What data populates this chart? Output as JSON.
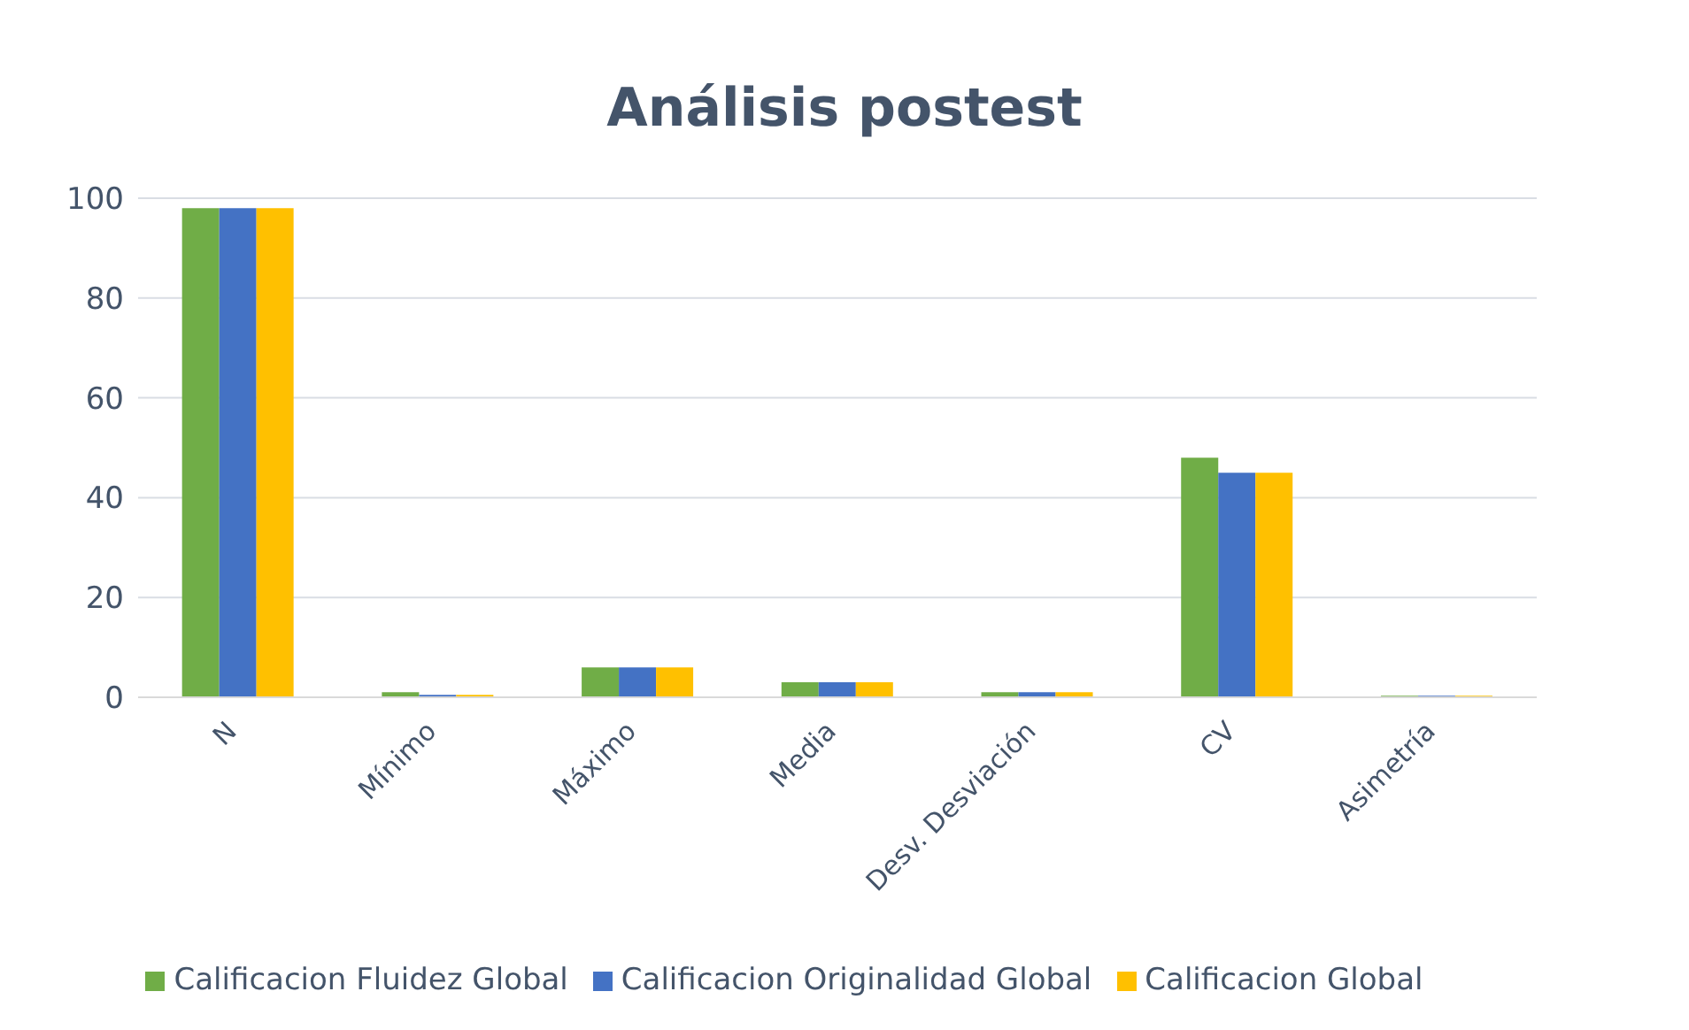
{
  "chart_data": {
    "type": "bar",
    "title": "Análisis postest",
    "categories": [
      "N",
      "Mínimo",
      "Máximo",
      "Media",
      "Desv. Desviación",
      "CV",
      "Asimetría"
    ],
    "series": [
      {
        "name": "Calificacion Fluidez Global",
        "color": "#70ad47",
        "values": [
          98,
          1,
          6,
          3,
          1,
          48,
          0.3
        ]
      },
      {
        "name": "Calificacion Originalidad Global",
        "color": "#4472c4",
        "values": [
          98,
          0.5,
          6,
          3,
          1,
          45,
          0.3
        ]
      },
      {
        "name": "Calificacion Global",
        "color": "#ffc000",
        "values": [
          98,
          0.5,
          6,
          3,
          1,
          45,
          0.3
        ]
      }
    ],
    "ylim": [
      0,
      100
    ],
    "yticks": [
      0,
      20,
      40,
      60,
      80,
      100
    ],
    "grid": "y",
    "legend": "bottom"
  }
}
